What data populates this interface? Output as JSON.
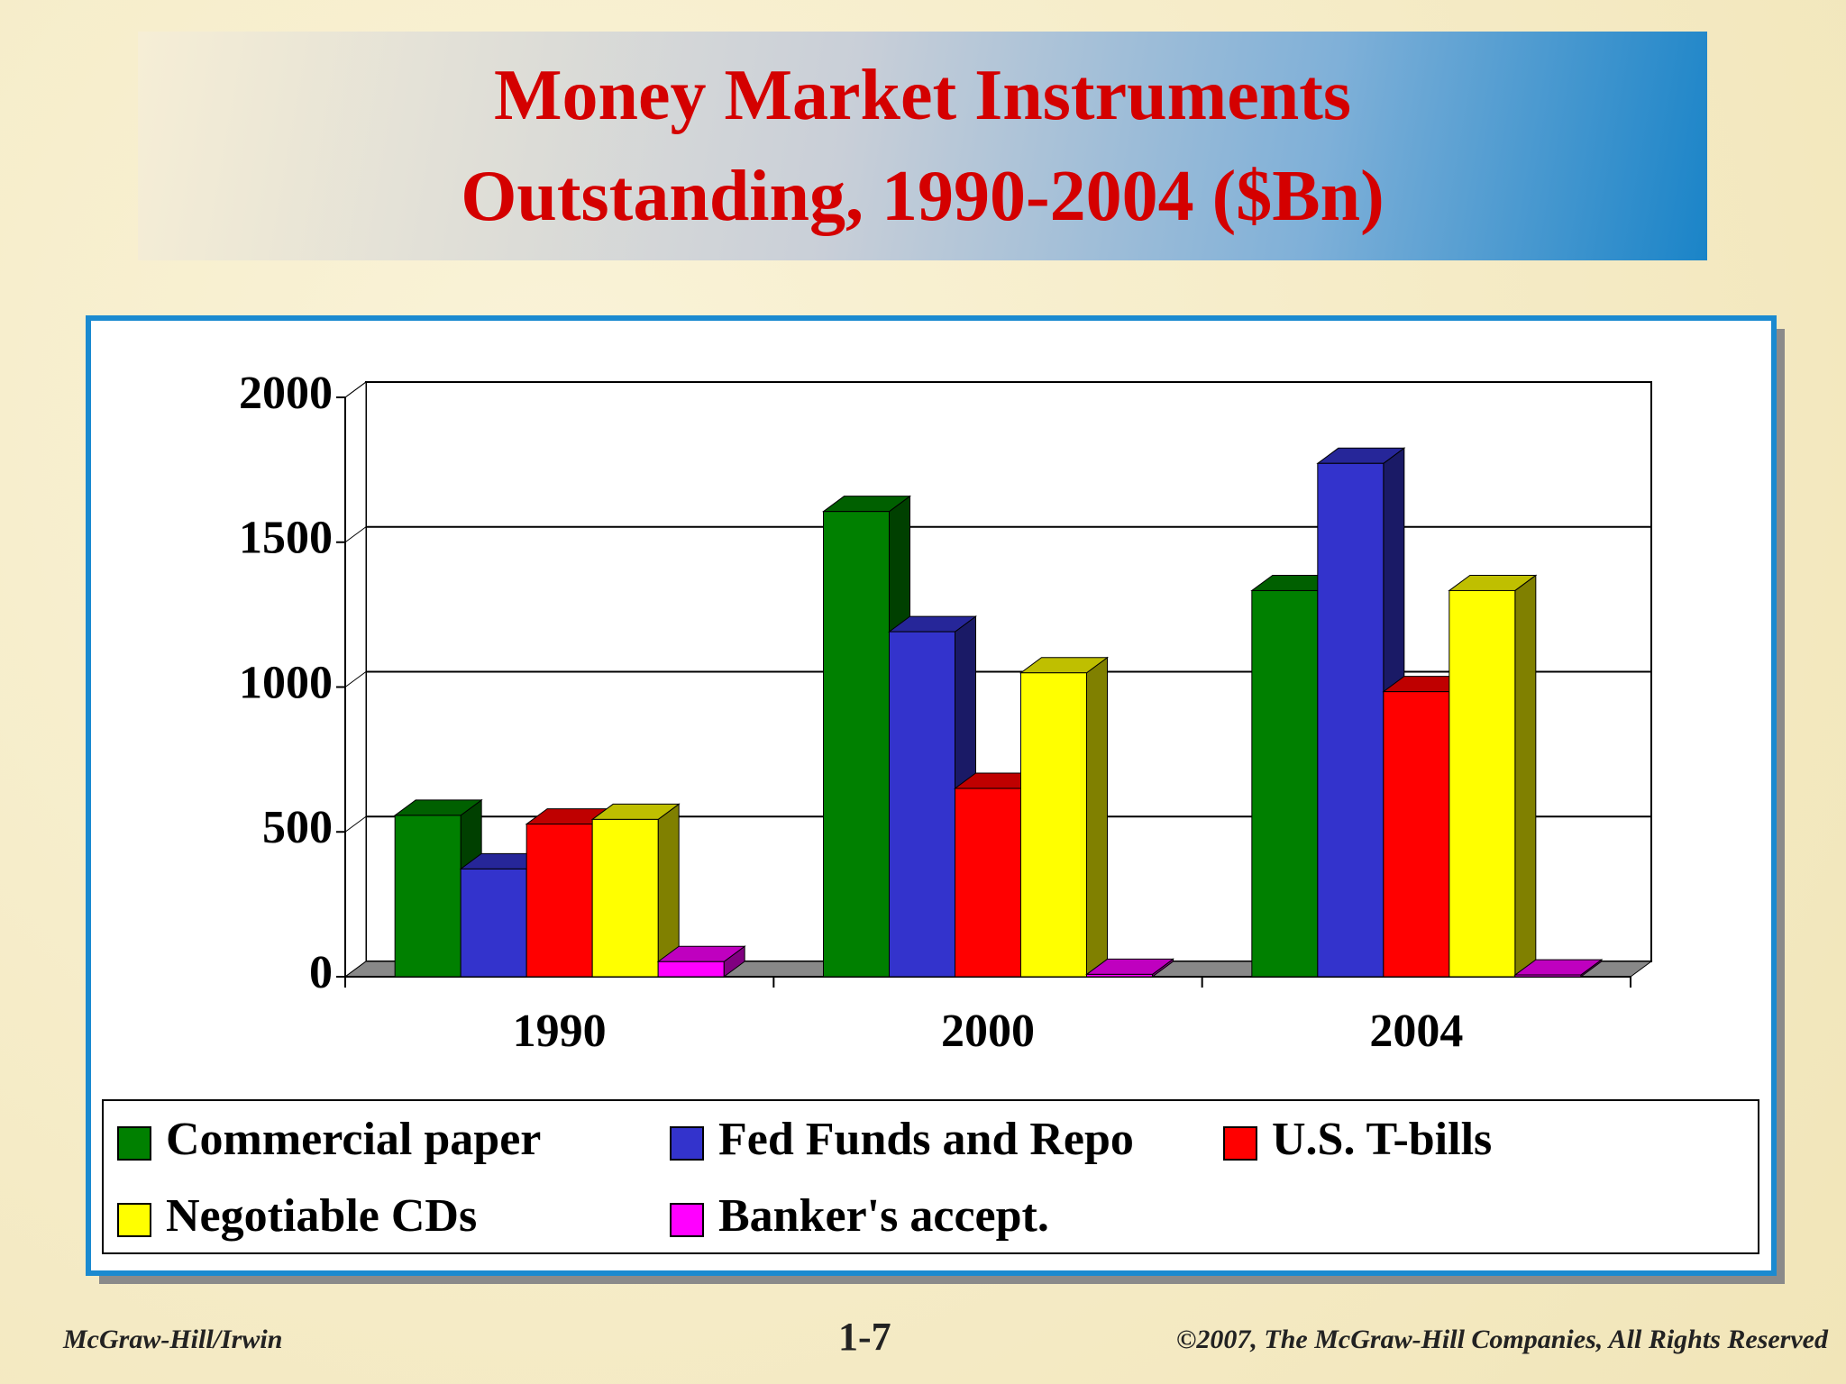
{
  "chart_data": {
    "type": "bar3d",
    "title": "Money Market Instruments Outstanding, 1990-2004 ($Bn)",
    "categories": [
      "1990",
      "2000",
      "2004"
    ],
    "series": [
      {
        "name": "Commercial paper",
        "color": "#008000",
        "values": [
          557,
          1606,
          1333
        ]
      },
      {
        "name": "Fed Funds and Repo",
        "color": "#3333cc",
        "values": [
          372,
          1191,
          1772
        ]
      },
      {
        "name": "U.S. T-bills",
        "color": "#ff0000",
        "values": [
          527,
          650,
          984
        ]
      },
      {
        "name": "Negotiable CDs",
        "color": "#ffff00",
        "values": [
          543,
          1049,
          1333
        ]
      },
      {
        "name": "Banker's accept.",
        "color": "#ff00ff",
        "values": [
          52,
          8,
          6
        ]
      }
    ],
    "ylim": [
      0,
      2000
    ],
    "yticks": [
      0,
      500,
      1000,
      1500,
      2000
    ],
    "grid": true
  },
  "footer": {
    "publisher": "McGraw-Hill/Irwin",
    "page": "1-7",
    "copyright": "©2007, The McGraw-Hill Companies, All Rights Reserved"
  }
}
